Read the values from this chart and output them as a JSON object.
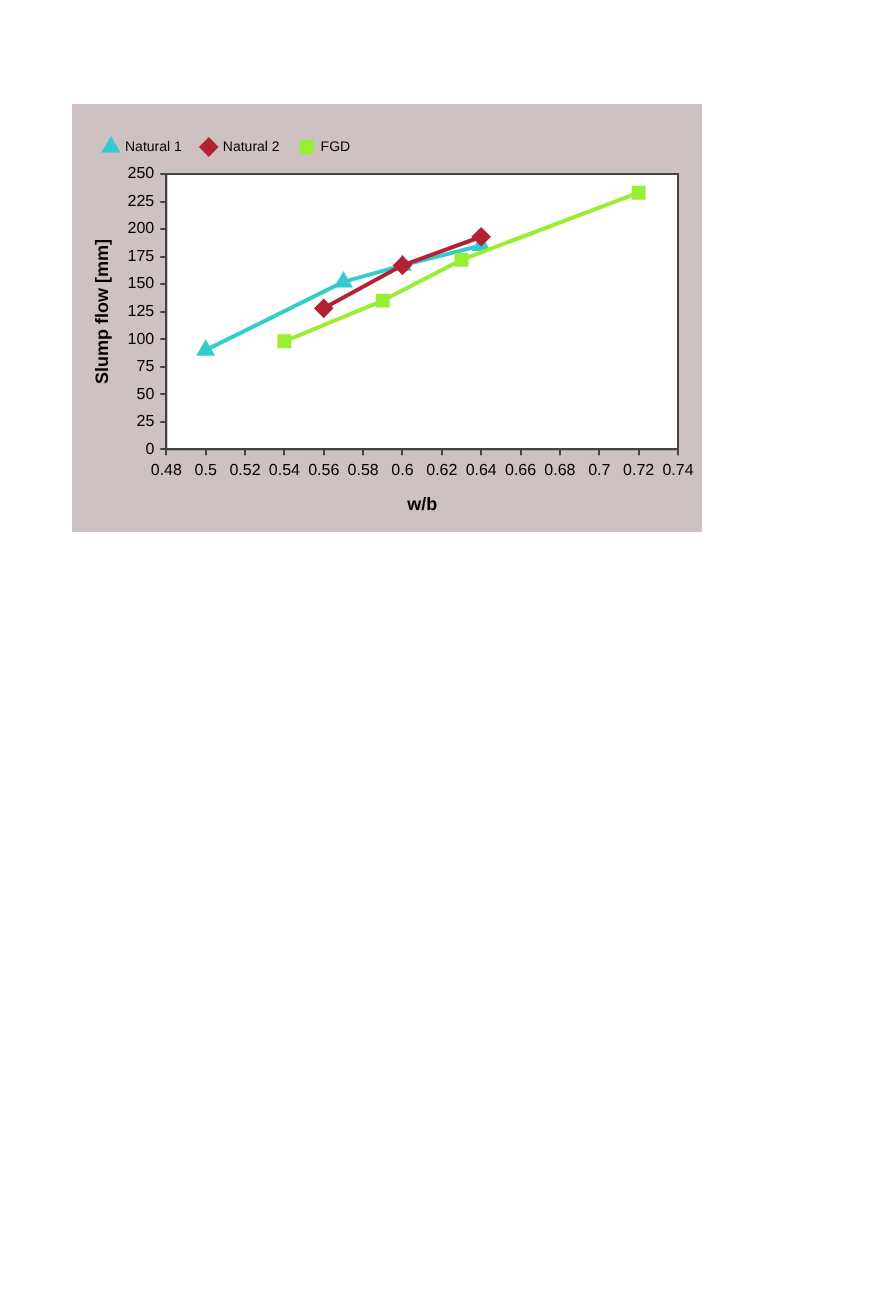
{
  "chart_data": {
    "type": "line",
    "xlabel": "w/b",
    "ylabel": "Slump flow [mm]",
    "xlim": [
      0.48,
      0.74
    ],
    "xticks": [
      0.48,
      0.5,
      0.52,
      0.54,
      0.56,
      0.58,
      0.6,
      0.62,
      0.64,
      0.66,
      0.68,
      0.7,
      0.72,
      0.74
    ],
    "ylim": [
      0,
      250
    ],
    "yticks": [
      0,
      25,
      50,
      75,
      100,
      125,
      150,
      175,
      200,
      225,
      250
    ],
    "grid": false,
    "legend": "top left",
    "series": [
      {
        "name": "Natural 1",
        "color": "#33cccc",
        "marker": "triangle",
        "x": [
          0.5,
          0.57,
          0.6,
          0.64
        ],
        "values": [
          90,
          152,
          167,
          185
        ]
      },
      {
        "name": "Natural 2",
        "color": "#b22234",
        "marker": "diamond",
        "x": [
          0.56,
          0.6,
          0.64
        ],
        "values": [
          128,
          167,
          193
        ]
      },
      {
        "name": "FGD",
        "color": "#99ee33",
        "marker": "square",
        "x": [
          0.54,
          0.59,
          0.63,
          0.72
        ],
        "values": [
          98,
          135,
          172,
          233
        ]
      }
    ]
  }
}
